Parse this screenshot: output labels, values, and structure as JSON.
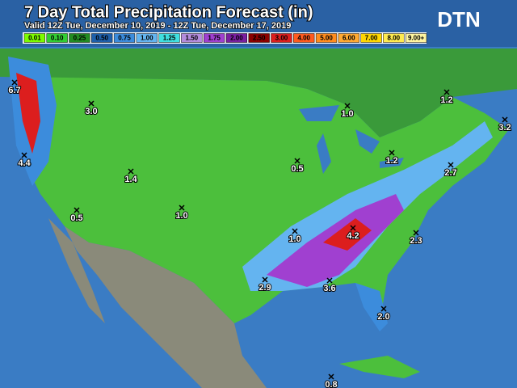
{
  "header": {
    "title": "7 Day Total Precipitation Forecast (in)",
    "subtitle": "Valid 12Z Tue, December 10, 2019 - 12Z Tue, December 17, 2019",
    "logo": "DTN"
  },
  "legend": [
    {
      "label": "0.01",
      "color": "#7cfc00"
    },
    {
      "label": "0.10",
      "color": "#32cd32"
    },
    {
      "label": "0.25",
      "color": "#228b22"
    },
    {
      "label": "0.50",
      "color": "#1e5faa"
    },
    {
      "label": "0.75",
      "color": "#3c8cdc"
    },
    {
      "label": "1.00",
      "color": "#64b4f0"
    },
    {
      "label": "1.25",
      "color": "#40e0e0"
    },
    {
      "label": "1.50",
      "color": "#b48cdc"
    },
    {
      "label": "1.75",
      "color": "#a040d0"
    },
    {
      "label": "2.00",
      "color": "#7a1fa0"
    },
    {
      "label": "2.50",
      "color": "#8b0000"
    },
    {
      "label": "3.00",
      "color": "#dc1e1e"
    },
    {
      "label": "4.00",
      "color": "#ff5a1e"
    },
    {
      "label": "5.00",
      "color": "#ff8c1e"
    },
    {
      "label": "6.00",
      "color": "#ffaa32"
    },
    {
      "label": "7.00",
      "color": "#ffd700"
    },
    {
      "label": "8.00",
      "color": "#ffeb50"
    },
    {
      "label": "9.00+",
      "color": "#fff5a0"
    }
  ],
  "labels": [
    "6.7",
    "3.0",
    "4.4",
    "1.4",
    "0.5",
    "1.0",
    "1.0",
    "1.2",
    "3.2",
    "1.2",
    "0.5",
    "2.7",
    "4.2",
    "1.0",
    "2.3",
    "2.9",
    "3.6",
    "2.0",
    "0.8"
  ]
}
